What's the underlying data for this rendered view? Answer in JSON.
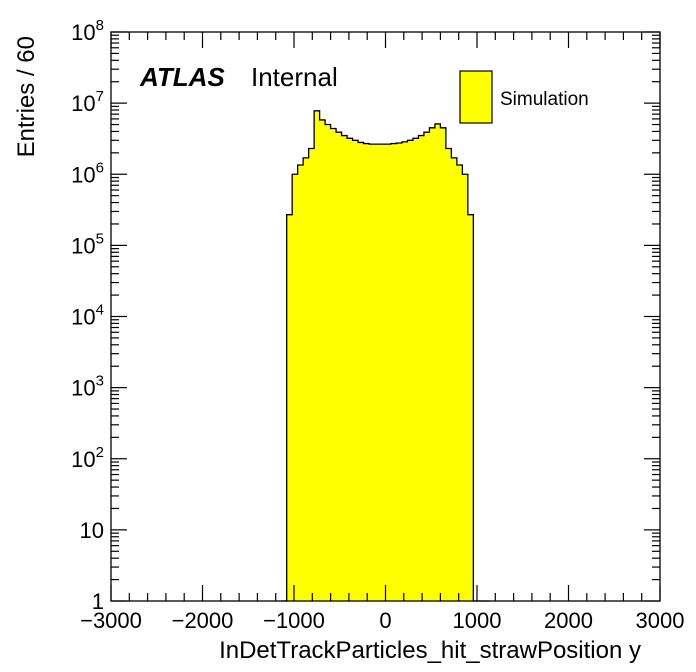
{
  "chart_data": {
    "type": "bar",
    "subtype": "histogram",
    "title": "",
    "experiment_label": "ATLAS",
    "status_label": "Internal",
    "xlabel": "InDetTrackParticles_hit_strawPosition y",
    "ylabel": "Entries / 60",
    "xlim": [
      -3000,
      3000
    ],
    "ylim": [
      1,
      100000000
    ],
    "yscale": "log",
    "grid": false,
    "legend_position": "top-right",
    "x_tick_labels": [
      "−3000",
      "−2000",
      "−1000",
      "0",
      "1000",
      "2000",
      "3000"
    ],
    "x_tick_values": [
      -3000,
      -2000,
      -1000,
      0,
      1000,
      2000,
      3000
    ],
    "y_tick_values": [
      1,
      10,
      100,
      1000,
      10000,
      100000,
      1000000,
      10000000,
      100000000
    ],
    "y_tick_labels": [
      {
        "base": "1",
        "exp": ""
      },
      {
        "base": "10",
        "exp": ""
      },
      {
        "base": "10",
        "exp": "2"
      },
      {
        "base": "10",
        "exp": "3"
      },
      {
        "base": "10",
        "exp": "4"
      },
      {
        "base": "10",
        "exp": "5"
      },
      {
        "base": "10",
        "exp": "6"
      },
      {
        "base": "10",
        "exp": "7"
      },
      {
        "base": "10",
        "exp": "8"
      }
    ],
    "fill_color": "#ffff00",
    "line_color": "#000000",
    "series": [
      {
        "name": "Simulation",
        "bin_edges": [
          -1140,
          -1080,
          -1020,
          -960,
          -900,
          -840,
          -780,
          -720,
          -660,
          -600,
          -540,
          -480,
          -420,
          -360,
          -300,
          -240,
          -180,
          -120,
          -60,
          0,
          60,
          120,
          180,
          240,
          300,
          360,
          420,
          480,
          540,
          600,
          660,
          720,
          780,
          840,
          900,
          960,
          1020,
          1080,
          1140
        ],
        "values": [
          1,
          270000,
          1000000,
          1350000,
          1700000,
          2300000,
          7800000,
          5800000,
          5000000,
          4400000,
          3900000,
          3500000,
          3200000,
          3000000,
          2800000,
          2700000,
          2650000,
          2650000,
          2650000,
          2650000,
          2700000,
          2750000,
          2850000,
          3000000,
          3200000,
          3500000,
          3900000,
          4500000,
          5100000,
          4500000,
          2300000,
          1700000,
          1350000,
          1000000,
          270000,
          1,
          1,
          1
        ]
      }
    ]
  }
}
